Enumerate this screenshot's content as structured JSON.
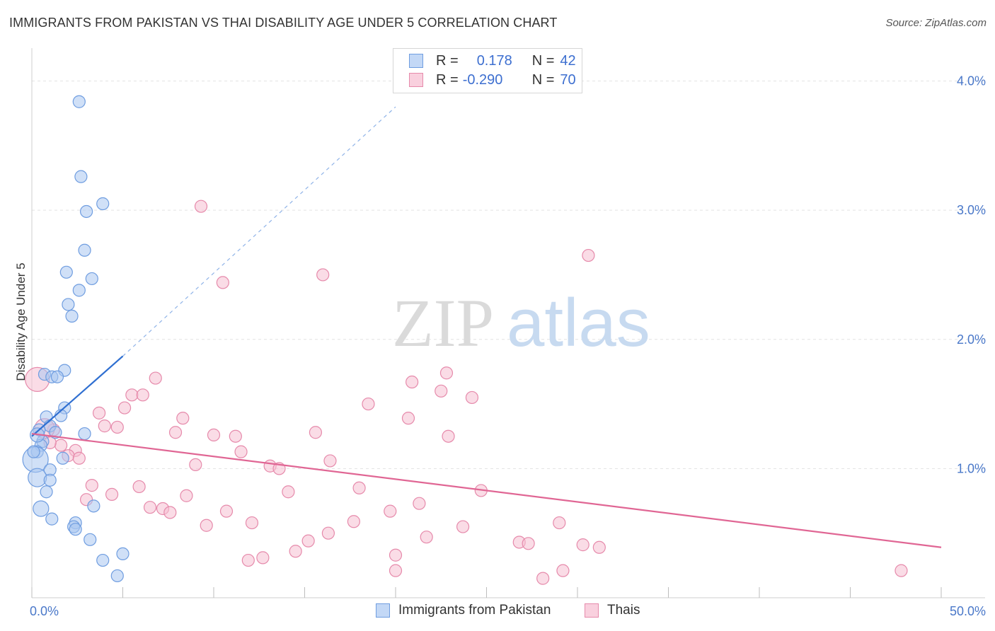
{
  "title": "IMMIGRANTS FROM PAKISTAN VS THAI DISABILITY AGE UNDER 5 CORRELATION CHART",
  "source": "Source: ZipAtlas.com",
  "watermark": {
    "part1": "ZIP",
    "part2": "atlas"
  },
  "legend": {
    "rows": [
      {
        "r_label": "R =",
        "r_value": "0.178",
        "n_label": "N =",
        "n_value": "42"
      },
      {
        "r_label": "R =",
        "r_value": "-0.290",
        "n_label": "N =",
        "n_value": "70"
      }
    ]
  },
  "colors": {
    "blue_fill": "#a9c7f0",
    "blue_stroke": "#6f9de0",
    "blue_line": "#2f6fd1",
    "pink_fill": "#f5bfd1",
    "pink_stroke": "#e68aab",
    "pink_line": "#e06694",
    "axis_label": "#4a78c9"
  },
  "chart_data": {
    "type": "scatter",
    "ylabel": "Disability Age Under 5",
    "xlim": [
      0,
      50
    ],
    "ylim": [
      0,
      4.2
    ],
    "x_tick_labels": [
      "0.0%",
      "50.0%"
    ],
    "y_ticks": [
      {
        "value": 1,
        "label": "1.0%"
      },
      {
        "value": 2,
        "label": "2.0%"
      },
      {
        "value": 3,
        "label": "3.0%"
      },
      {
        "value": 4,
        "label": "4.0%"
      }
    ],
    "grid": true,
    "series": [
      {
        "name": "Immigrants from Pakistan",
        "color": "blue",
        "trend": {
          "x0": 0,
          "y0": 1.25,
          "x1": 5,
          "y1": 1.87,
          "dashed_to_x": 20,
          "dashed_to_y": 3.8
        },
        "points": [
          {
            "x": 2.6,
            "y": 3.84
          },
          {
            "x": 2.7,
            "y": 3.26
          },
          {
            "x": 3.9,
            "y": 3.05
          },
          {
            "x": 3.0,
            "y": 2.99
          },
          {
            "x": 2.9,
            "y": 2.69
          },
          {
            "x": 1.9,
            "y": 2.52
          },
          {
            "x": 3.3,
            "y": 2.47
          },
          {
            "x": 2.6,
            "y": 2.38
          },
          {
            "x": 2.0,
            "y": 2.27
          },
          {
            "x": 2.2,
            "y": 2.18
          },
          {
            "x": 1.8,
            "y": 1.76
          },
          {
            "x": 0.7,
            "y": 1.73
          },
          {
            "x": 1.1,
            "y": 1.71
          },
          {
            "x": 1.4,
            "y": 1.71
          },
          {
            "x": 1.8,
            "y": 1.47
          },
          {
            "x": 0.8,
            "y": 1.4
          },
          {
            "x": 1.6,
            "y": 1.41
          },
          {
            "x": 1.0,
            "y": 1.33
          },
          {
            "x": 0.4,
            "y": 1.3
          },
          {
            "x": 1.3,
            "y": 1.28
          },
          {
            "x": 2.9,
            "y": 1.27
          },
          {
            "x": 0.6,
            "y": 1.21
          },
          {
            "x": 0.5,
            "y": 1.18
          },
          {
            "x": 0.3,
            "y": 1.13
          },
          {
            "x": 0.2,
            "y": 1.07
          },
          {
            "x": 1.7,
            "y": 1.08
          },
          {
            "x": 1.0,
            "y": 0.99
          },
          {
            "x": 0.3,
            "y": 0.93
          },
          {
            "x": 1.0,
            "y": 0.91
          },
          {
            "x": 0.8,
            "y": 0.82
          },
          {
            "x": 3.4,
            "y": 0.71
          },
          {
            "x": 0.5,
            "y": 0.69
          },
          {
            "x": 1.1,
            "y": 0.61
          },
          {
            "x": 2.4,
            "y": 0.58
          },
          {
            "x": 2.3,
            "y": 0.55
          },
          {
            "x": 2.4,
            "y": 0.53
          },
          {
            "x": 3.2,
            "y": 0.45
          },
          {
            "x": 5.0,
            "y": 0.34
          },
          {
            "x": 3.9,
            "y": 0.29
          },
          {
            "x": 4.7,
            "y": 0.17
          },
          {
            "x": 0.1,
            "y": 1.13
          },
          {
            "x": 0.3,
            "y": 1.26
          }
        ]
      },
      {
        "name": "Thais",
        "color": "pink",
        "trend": {
          "x0": 0,
          "y0": 1.27,
          "x1": 50,
          "y1": 0.39
        },
        "points": [
          {
            "x": 9.3,
            "y": 3.03
          },
          {
            "x": 30.6,
            "y": 2.65
          },
          {
            "x": 16.0,
            "y": 2.5
          },
          {
            "x": 10.5,
            "y": 2.44
          },
          {
            "x": 6.8,
            "y": 1.7
          },
          {
            "x": 22.8,
            "y": 1.74
          },
          {
            "x": 20.9,
            "y": 1.67
          },
          {
            "x": 22.5,
            "y": 1.6
          },
          {
            "x": 5.5,
            "y": 1.57
          },
          {
            "x": 6.1,
            "y": 1.57
          },
          {
            "x": 24.2,
            "y": 1.55
          },
          {
            "x": 18.5,
            "y": 1.5
          },
          {
            "x": 5.1,
            "y": 1.47
          },
          {
            "x": 3.7,
            "y": 1.43
          },
          {
            "x": 8.3,
            "y": 1.39
          },
          {
            "x": 20.7,
            "y": 1.39
          },
          {
            "x": 4.0,
            "y": 1.33
          },
          {
            "x": 4.7,
            "y": 1.32
          },
          {
            "x": 1.2,
            "y": 1.3
          },
          {
            "x": 7.9,
            "y": 1.28
          },
          {
            "x": 15.6,
            "y": 1.28
          },
          {
            "x": 10.0,
            "y": 1.26
          },
          {
            "x": 11.2,
            "y": 1.25
          },
          {
            "x": 22.9,
            "y": 1.25
          },
          {
            "x": 1.6,
            "y": 1.18
          },
          {
            "x": 2.4,
            "y": 1.14
          },
          {
            "x": 11.5,
            "y": 1.13
          },
          {
            "x": 2.0,
            "y": 1.1
          },
          {
            "x": 2.6,
            "y": 1.08
          },
          {
            "x": 16.4,
            "y": 1.06
          },
          {
            "x": 9.0,
            "y": 1.03
          },
          {
            "x": 13.1,
            "y": 1.02
          },
          {
            "x": 13.6,
            "y": 1.0
          },
          {
            "x": 3.3,
            "y": 0.87
          },
          {
            "x": 5.9,
            "y": 0.86
          },
          {
            "x": 18.0,
            "y": 0.85
          },
          {
            "x": 24.7,
            "y": 0.83
          },
          {
            "x": 14.1,
            "y": 0.82
          },
          {
            "x": 4.4,
            "y": 0.8
          },
          {
            "x": 8.5,
            "y": 0.79
          },
          {
            "x": 3.0,
            "y": 0.76
          },
          {
            "x": 21.3,
            "y": 0.73
          },
          {
            "x": 6.5,
            "y": 0.7
          },
          {
            "x": 7.2,
            "y": 0.69
          },
          {
            "x": 7.6,
            "y": 0.66
          },
          {
            "x": 10.7,
            "y": 0.67
          },
          {
            "x": 19.7,
            "y": 0.67
          },
          {
            "x": 17.7,
            "y": 0.59
          },
          {
            "x": 12.1,
            "y": 0.58
          },
          {
            "x": 29.0,
            "y": 0.58
          },
          {
            "x": 9.6,
            "y": 0.56
          },
          {
            "x": 23.7,
            "y": 0.55
          },
          {
            "x": 16.3,
            "y": 0.5
          },
          {
            "x": 21.7,
            "y": 0.47
          },
          {
            "x": 15.2,
            "y": 0.44
          },
          {
            "x": 26.8,
            "y": 0.43
          },
          {
            "x": 27.3,
            "y": 0.42
          },
          {
            "x": 30.3,
            "y": 0.41
          },
          {
            "x": 31.2,
            "y": 0.39
          },
          {
            "x": 14.5,
            "y": 0.36
          },
          {
            "x": 20.0,
            "y": 0.33
          },
          {
            "x": 12.7,
            "y": 0.31
          },
          {
            "x": 11.9,
            "y": 0.29
          },
          {
            "x": 20.0,
            "y": 0.21
          },
          {
            "x": 29.2,
            "y": 0.21
          },
          {
            "x": 47.8,
            "y": 0.21
          },
          {
            "x": 28.1,
            "y": 0.15
          },
          {
            "x": 0.3,
            "y": 1.69
          },
          {
            "x": 0.7,
            "y": 1.31
          },
          {
            "x": 1.0,
            "y": 1.2
          }
        ]
      }
    ]
  },
  "bottom_legend": {
    "item1": "Immigrants from Pakistan",
    "item2": "Thais"
  }
}
